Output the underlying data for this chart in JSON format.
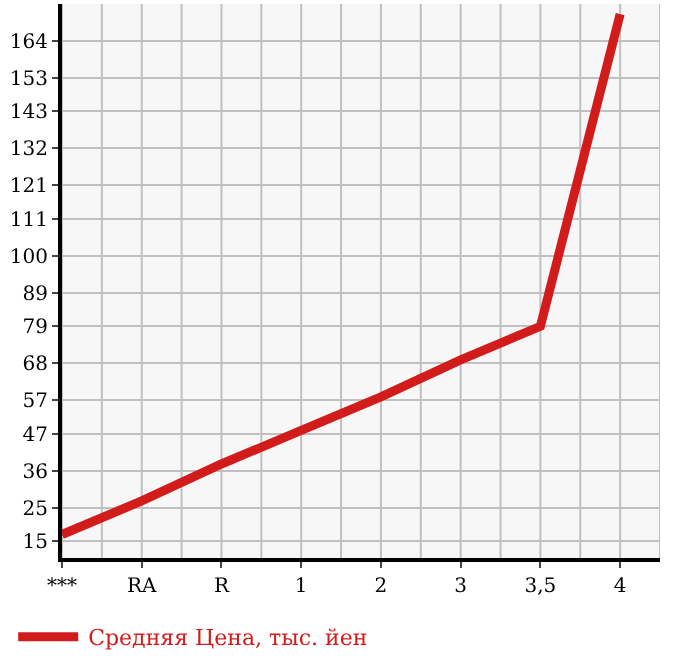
{
  "chart_data": {
    "type": "line",
    "categories": [
      "***",
      "RA",
      "R",
      "1",
      "2",
      "3",
      "3,5",
      "4"
    ],
    "series": [
      {
        "name": "Средняя Цена, тыс. йен",
        "color": "#d21c1c",
        "values": [
          17,
          27,
          38,
          48,
          58,
          69,
          79,
          172
        ]
      }
    ],
    "ylim": [
      10,
      175
    ],
    "yticks": [
      15,
      25,
      36,
      47,
      57,
      68,
      79,
      89,
      100,
      111,
      121,
      132,
      143,
      153,
      164
    ],
    "grid": true,
    "legend": "bottom",
    "marker": "none",
    "line_style": "solid"
  }
}
